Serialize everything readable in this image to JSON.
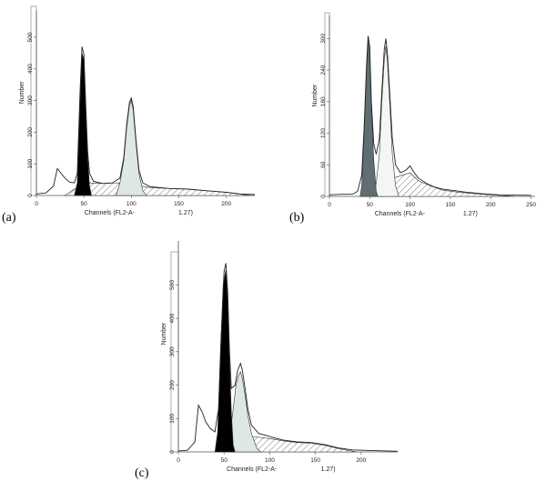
{
  "chart_data": [
    {
      "type": "area",
      "panel_label": "(a)",
      "xlabel": "Channels (FL2-A-",
      "xlabel_suffix": "1.27)",
      "ylabel": "Number",
      "x_ticks": [
        0,
        50,
        100,
        150,
        200
      ],
      "y_ticks": [
        0,
        100,
        200,
        300,
        400,
        500
      ],
      "xlim": [
        0,
        230
      ],
      "ylim": [
        0,
        560
      ],
      "series": [
        {
          "role": "histogram-outline",
          "points": [
            [
              0,
              5
            ],
            [
              10,
              8
            ],
            [
              18,
              30
            ],
            [
              22,
              85
            ],
            [
              26,
              70
            ],
            [
              30,
              55
            ],
            [
              35,
              42
            ],
            [
              40,
              40
            ],
            [
              43,
              70
            ],
            [
              46,
              330
            ],
            [
              48,
              470
            ],
            [
              50,
              445
            ],
            [
              52,
              280
            ],
            [
              54,
              140
            ],
            [
              56,
              70
            ],
            [
              60,
              45
            ],
            [
              70,
              38
            ],
            [
              80,
              40
            ],
            [
              88,
              55
            ],
            [
              92,
              120
            ],
            [
              95,
              220
            ],
            [
              98,
              295
            ],
            [
              100,
              308
            ],
            [
              102,
              280
            ],
            [
              105,
              170
            ],
            [
              108,
              80
            ],
            [
              112,
              40
            ],
            [
              120,
              28
            ],
            [
              140,
              22
            ],
            [
              160,
              20
            ],
            [
              180,
              15
            ],
            [
              200,
              10
            ],
            [
              215,
              5
            ],
            [
              230,
              3
            ]
          ]
        },
        {
          "role": "g0g1-peak",
          "fill": "#000000",
          "points": [
            [
              40,
              0
            ],
            [
              43,
              40
            ],
            [
              46,
              300
            ],
            [
              48,
              450
            ],
            [
              50,
              430
            ],
            [
              52,
              260
            ],
            [
              54,
              120
            ],
            [
              56,
              30
            ],
            [
              58,
              0
            ]
          ]
        },
        {
          "role": "g2m-peak",
          "fill": "#dfe6e6",
          "points": [
            [
              84,
              0
            ],
            [
              88,
              40
            ],
            [
              92,
              110
            ],
            [
              95,
              210
            ],
            [
              98,
              285
            ],
            [
              100,
              300
            ],
            [
              102,
              270
            ],
            [
              105,
              160
            ],
            [
              108,
              70
            ],
            [
              112,
              15
            ],
            [
              116,
              0
            ]
          ]
        },
        {
          "role": "s-phase",
          "fill": "hatched",
          "points": [
            [
              30,
              0
            ],
            [
              40,
              20
            ],
            [
              55,
              40
            ],
            [
              70,
              38
            ],
            [
              85,
              40
            ],
            [
              100,
              35
            ],
            [
              120,
              25
            ],
            [
              140,
              22
            ],
            [
              160,
              20
            ],
            [
              180,
              15
            ],
            [
              200,
              10
            ],
            [
              225,
              0
            ]
          ]
        }
      ]
    },
    {
      "type": "area",
      "panel_label": "(b)",
      "xlabel": "Channels (FL2-A-",
      "xlabel_suffix": "1.27)",
      "ylabel": "Number",
      "x_ticks": [
        0,
        50,
        100,
        150,
        200,
        250
      ],
      "y_ticks": [
        0,
        60,
        120,
        180,
        240,
        300
      ],
      "y_tick_labels": [
        "0",
        "60",
        "120",
        "180",
        "240",
        "300"
      ],
      "xlim": [
        0,
        255
      ],
      "ylim": [
        0,
        330
      ],
      "series": [
        {
          "role": "histogram-outline",
          "points": [
            [
              0,
              3
            ],
            [
              15,
              4
            ],
            [
              25,
              4
            ],
            [
              30,
              5
            ],
            [
              35,
              10
            ],
            [
              40,
              40
            ],
            [
              43,
              130
            ],
            [
              46,
              250
            ],
            [
              48,
              305
            ],
            [
              50,
              285
            ],
            [
              52,
              180
            ],
            [
              55,
              100
            ],
            [
              58,
              80
            ],
            [
              62,
              110
            ],
            [
              65,
              200
            ],
            [
              68,
              280
            ],
            [
              70,
              300
            ],
            [
              72,
              270
            ],
            [
              75,
              190
            ],
            [
              78,
              110
            ],
            [
              82,
              60
            ],
            [
              88,
              45
            ],
            [
              95,
              50
            ],
            [
              100,
              58
            ],
            [
              103,
              50
            ],
            [
              110,
              35
            ],
            [
              120,
              25
            ],
            [
              130,
              18
            ],
            [
              140,
              14
            ],
            [
              150,
              12
            ],
            [
              170,
              8
            ],
            [
              190,
              5
            ],
            [
              210,
              3
            ],
            [
              250,
              2
            ]
          ]
        },
        {
          "role": "g0g1-peak",
          "fill": "#5f6e72",
          "points": [
            [
              38,
              0
            ],
            [
              40,
              20
            ],
            [
              43,
              120
            ],
            [
              46,
              240
            ],
            [
              48,
              295
            ],
            [
              50,
              275
            ],
            [
              52,
              170
            ],
            [
              55,
              70
            ],
            [
              58,
              10
            ],
            [
              60,
              0
            ]
          ]
        },
        {
          "role": "g2m-peak",
          "fill": "#f4f6f6",
          "points": [
            [
              55,
              0
            ],
            [
              58,
              25
            ],
            [
              62,
              80
            ],
            [
              65,
              180
            ],
            [
              68,
              260
            ],
            [
              70,
              285
            ],
            [
              72,
              255
            ],
            [
              75,
              170
            ],
            [
              78,
              80
            ],
            [
              82,
              20
            ],
            [
              86,
              0
            ]
          ]
        },
        {
          "role": "s-phase",
          "fill": "hatched",
          "points": [
            [
              40,
              0
            ],
            [
              50,
              15
            ],
            [
              60,
              20
            ],
            [
              80,
              35
            ],
            [
              90,
              40
            ],
            [
              100,
              45
            ],
            [
              110,
              30
            ],
            [
              125,
              20
            ],
            [
              140,
              12
            ],
            [
              160,
              8
            ],
            [
              190,
              4
            ],
            [
              230,
              0
            ]
          ]
        }
      ]
    },
    {
      "type": "area",
      "panel_label": "(c)",
      "xlabel": "Channels (FL2-A-",
      "xlabel_suffix": "1.27)",
      "ylabel": "Number",
      "x_ticks": [
        0,
        50,
        100,
        150,
        200
      ],
      "y_ticks": [
        0,
        100,
        200,
        300,
        400,
        500
      ],
      "xlim": [
        0,
        240
      ],
      "ylim": [
        0,
        610
      ],
      "series": [
        {
          "role": "histogram-outline",
          "points": [
            [
              0,
              3
            ],
            [
              10,
              5
            ],
            [
              18,
              30
            ],
            [
              22,
              140
            ],
            [
              26,
              120
            ],
            [
              30,
              90
            ],
            [
              35,
              70
            ],
            [
              40,
              60
            ],
            [
              44,
              130
            ],
            [
              47,
              350
            ],
            [
              50,
              540
            ],
            [
              52,
              565
            ],
            [
              54,
              480
            ],
            [
              56,
              300
            ],
            [
              58,
              190
            ],
            [
              62,
              200
            ],
            [
              65,
              245
            ],
            [
              68,
              265
            ],
            [
              70,
              245
            ],
            [
              73,
              190
            ],
            [
              76,
              130
            ],
            [
              80,
              80
            ],
            [
              88,
              55
            ],
            [
              95,
              50
            ],
            [
              105,
              42
            ],
            [
              115,
              35
            ],
            [
              130,
              30
            ],
            [
              145,
              28
            ],
            [
              160,
              22
            ],
            [
              175,
              12
            ],
            [
              190,
              6
            ],
            [
              240,
              2
            ]
          ]
        },
        {
          "role": "g0g1-peak",
          "fill": "#000000",
          "points": [
            [
              40,
              0
            ],
            [
              43,
              60
            ],
            [
              46,
              300
            ],
            [
              49,
              500
            ],
            [
              52,
              545
            ],
            [
              54,
              460
            ],
            [
              56,
              280
            ],
            [
              58,
              120
            ],
            [
              60,
              20
            ],
            [
              62,
              0
            ]
          ]
        },
        {
          "role": "g2m-peak",
          "fill": "#dfe6e6",
          "points": [
            [
              52,
              0
            ],
            [
              56,
              40
            ],
            [
              60,
              130
            ],
            [
              63,
              200
            ],
            [
              66,
              230
            ],
            [
              68,
              240
            ],
            [
              70,
              220
            ],
            [
              73,
              170
            ],
            [
              76,
              110
            ],
            [
              80,
              55
            ],
            [
              86,
              10
            ],
            [
              90,
              0
            ]
          ]
        },
        {
          "role": "s-phase",
          "fill": "hatched",
          "points": [
            [
              45,
              0
            ],
            [
              55,
              20
            ],
            [
              70,
              40
            ],
            [
              85,
              45
            ],
            [
              100,
              40
            ],
            [
              115,
              33
            ],
            [
              130,
              28
            ],
            [
              145,
              26
            ],
            [
              160,
              20
            ],
            [
              175,
              10
            ],
            [
              195,
              0
            ]
          ]
        }
      ]
    }
  ]
}
